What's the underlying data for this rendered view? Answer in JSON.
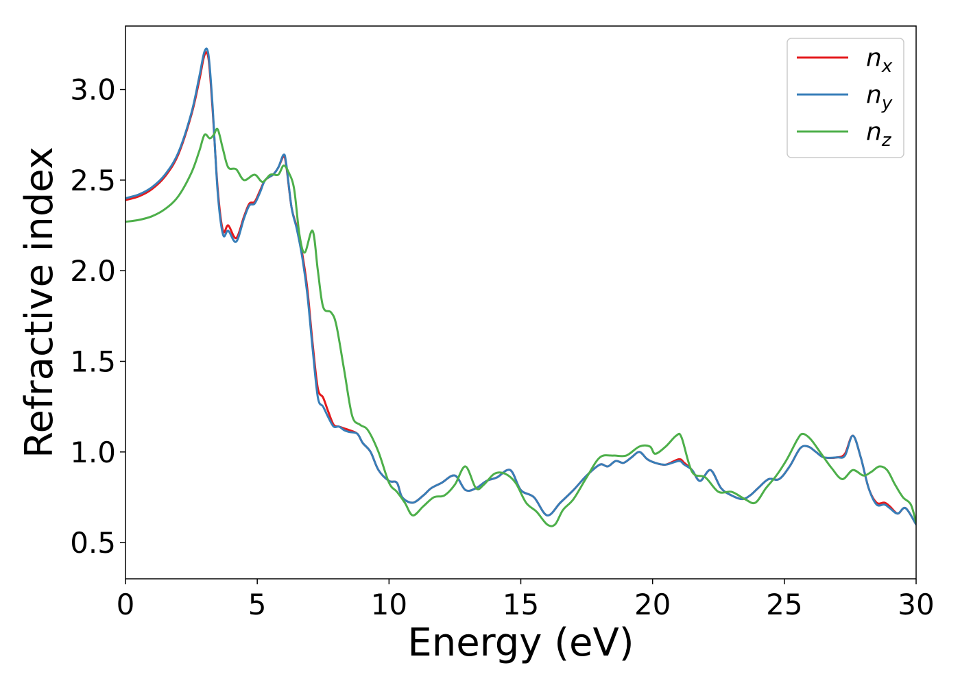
{
  "chart_data": {
    "type": "line",
    "title": "",
    "xlabel": "Energy (eV)",
    "ylabel": "Refractive index",
    "xlim": [
      0,
      30
    ],
    "ylim": [
      0.3,
      3.35
    ],
    "xticks": [
      0,
      5,
      10,
      15,
      20,
      25,
      30
    ],
    "xtick_labels": [
      "0",
      "5",
      "10",
      "15",
      "20",
      "25",
      "30"
    ],
    "yticks": [
      0.5,
      1.0,
      1.5,
      2.0,
      2.5,
      3.0
    ],
    "ytick_labels": [
      "0.5",
      "1.0",
      "1.5",
      "2.0",
      "2.5",
      "3.0"
    ],
    "grid": false,
    "legend_position": "top-right",
    "series": [
      {
        "name": "n_x",
        "label_base": "n",
        "label_sub": "x",
        "color": "#e41a1c",
        "x": [
          0,
          0.5,
          1,
          1.5,
          2,
          2.5,
          2.8,
          3.0,
          3.15,
          3.3,
          3.5,
          3.7,
          3.9,
          4.2,
          4.5,
          4.7,
          4.9,
          5.1,
          5.3,
          5.6,
          5.8,
          6.0,
          6.1,
          6.3,
          6.5,
          6.7,
          6.9,
          7.1,
          7.3,
          7.5,
          7.7,
          7.9,
          8.1,
          8.3,
          8.5,
          8.8,
          9.0,
          9.3,
          9.6,
          10.0,
          10.3,
          10.5,
          10.9,
          11.3,
          11.6,
          12.0,
          12.5,
          12.9,
          13.3,
          13.7,
          14.1,
          14.6,
          15.0,
          15.5,
          16.0,
          16.5,
          17.0,
          17.5,
          18.0,
          18.3,
          18.6,
          18.9,
          19.2,
          19.5,
          19.8,
          20.1,
          20.5,
          21.0,
          21.2,
          21.5,
          21.8,
          22.2,
          22.6,
          23.0,
          23.4,
          23.7,
          24.0,
          24.4,
          24.8,
          25.2,
          25.6,
          25.9,
          26.2,
          26.5,
          27.0,
          27.3,
          27.6,
          27.9,
          28.2,
          28.5,
          28.8,
          29.0,
          29.3,
          29.6,
          30.0
        ],
        "y": [
          2.39,
          2.41,
          2.45,
          2.52,
          2.64,
          2.86,
          3.05,
          3.19,
          3.17,
          2.9,
          2.45,
          2.22,
          2.25,
          2.18,
          2.3,
          2.37,
          2.38,
          2.44,
          2.5,
          2.53,
          2.57,
          2.63,
          2.58,
          2.35,
          2.24,
          2.1,
          1.9,
          1.6,
          1.35,
          1.3,
          1.22,
          1.15,
          1.14,
          1.13,
          1.12,
          1.1,
          1.05,
          1.0,
          0.9,
          0.84,
          0.83,
          0.75,
          0.72,
          0.76,
          0.8,
          0.83,
          0.87,
          0.79,
          0.8,
          0.84,
          0.86,
          0.9,
          0.79,
          0.75,
          0.65,
          0.72,
          0.79,
          0.87,
          0.93,
          0.92,
          0.95,
          0.94,
          0.97,
          1.0,
          0.96,
          0.94,
          0.93,
          0.96,
          0.94,
          0.9,
          0.84,
          0.9,
          0.8,
          0.76,
          0.74,
          0.76,
          0.8,
          0.85,
          0.85,
          0.92,
          1.02,
          1.03,
          1.0,
          0.97,
          0.97,
          0.99,
          1.09,
          0.97,
          0.8,
          0.72,
          0.72,
          0.7,
          0.66,
          0.69,
          0.6
        ]
      },
      {
        "name": "n_y",
        "label_base": "n",
        "label_sub": "y",
        "color": "#377eb8",
        "x": [
          0,
          0.5,
          1,
          1.5,
          2,
          2.5,
          2.8,
          3.0,
          3.15,
          3.3,
          3.5,
          3.7,
          3.9,
          4.2,
          4.5,
          4.7,
          4.9,
          5.1,
          5.3,
          5.6,
          5.8,
          6.0,
          6.1,
          6.3,
          6.5,
          6.7,
          6.9,
          7.1,
          7.3,
          7.5,
          7.7,
          7.9,
          8.1,
          8.3,
          8.5,
          8.8,
          9.0,
          9.3,
          9.6,
          10.0,
          10.3,
          10.5,
          10.9,
          11.3,
          11.6,
          12.0,
          12.5,
          12.9,
          13.3,
          13.7,
          14.1,
          14.6,
          15.0,
          15.5,
          16.0,
          16.5,
          17.0,
          17.5,
          18.0,
          18.3,
          18.6,
          18.9,
          19.2,
          19.5,
          19.8,
          20.1,
          20.5,
          21.0,
          21.2,
          21.5,
          21.8,
          22.2,
          22.6,
          23.0,
          23.4,
          23.7,
          24.0,
          24.4,
          24.8,
          25.2,
          25.6,
          25.9,
          26.2,
          26.5,
          27.0,
          27.3,
          27.6,
          27.9,
          28.2,
          28.5,
          28.8,
          29.0,
          29.3,
          29.6,
          30.0
        ],
        "y": [
          2.4,
          2.42,
          2.46,
          2.53,
          2.65,
          2.87,
          3.07,
          3.21,
          3.19,
          2.92,
          2.43,
          2.2,
          2.22,
          2.16,
          2.29,
          2.36,
          2.37,
          2.43,
          2.5,
          2.53,
          2.57,
          2.64,
          2.59,
          2.35,
          2.23,
          2.08,
          1.87,
          1.57,
          1.3,
          1.25,
          1.19,
          1.14,
          1.14,
          1.12,
          1.11,
          1.1,
          1.05,
          1.0,
          0.9,
          0.84,
          0.83,
          0.75,
          0.72,
          0.76,
          0.8,
          0.83,
          0.87,
          0.79,
          0.8,
          0.84,
          0.86,
          0.9,
          0.79,
          0.75,
          0.65,
          0.72,
          0.79,
          0.87,
          0.93,
          0.92,
          0.95,
          0.94,
          0.97,
          1.0,
          0.96,
          0.94,
          0.93,
          0.95,
          0.93,
          0.9,
          0.84,
          0.9,
          0.8,
          0.76,
          0.74,
          0.76,
          0.8,
          0.85,
          0.85,
          0.92,
          1.02,
          1.03,
          1.0,
          0.97,
          0.97,
          0.98,
          1.09,
          0.97,
          0.8,
          0.71,
          0.71,
          0.69,
          0.66,
          0.69,
          0.6
        ]
      },
      {
        "name": "n_z",
        "label_base": "n",
        "label_sub": "z",
        "color": "#4daf4a",
        "x": [
          0,
          0.5,
          1,
          1.5,
          2,
          2.5,
          2.8,
          3.0,
          3.2,
          3.35,
          3.5,
          3.7,
          3.9,
          4.2,
          4.5,
          4.9,
          5.2,
          5.5,
          5.8,
          6.0,
          6.2,
          6.4,
          6.6,
          6.8,
          7.1,
          7.3,
          7.5,
          7.8,
          8.0,
          8.3,
          8.6,
          8.9,
          9.2,
          9.6,
          10.0,
          10.3,
          10.6,
          10.9,
          11.3,
          11.7,
          12.1,
          12.5,
          12.9,
          13.3,
          13.6,
          14.0,
          14.4,
          14.8,
          15.2,
          15.6,
          16.0,
          16.3,
          16.6,
          17.0,
          17.5,
          18.0,
          18.5,
          19.0,
          19.5,
          19.9,
          20.1,
          20.5,
          20.9,
          21.1,
          21.5,
          22.0,
          22.5,
          23.0,
          23.5,
          23.9,
          24.3,
          24.7,
          25.1,
          25.5,
          25.7,
          26.0,
          26.4,
          26.8,
          27.2,
          27.6,
          28.0,
          28.3,
          28.6,
          28.9,
          29.2,
          29.5,
          29.8,
          30.0
        ],
        "y": [
          2.27,
          2.28,
          2.3,
          2.34,
          2.41,
          2.54,
          2.66,
          2.75,
          2.73,
          2.75,
          2.78,
          2.67,
          2.57,
          2.56,
          2.5,
          2.53,
          2.49,
          2.53,
          2.53,
          2.58,
          2.54,
          2.45,
          2.2,
          2.1,
          2.22,
          2.0,
          1.8,
          1.77,
          1.7,
          1.45,
          1.2,
          1.15,
          1.12,
          1.0,
          0.83,
          0.78,
          0.72,
          0.65,
          0.7,
          0.75,
          0.76,
          0.82,
          0.92,
          0.8,
          0.82,
          0.88,
          0.88,
          0.83,
          0.72,
          0.67,
          0.6,
          0.6,
          0.68,
          0.74,
          0.86,
          0.97,
          0.98,
          0.98,
          1.03,
          1.03,
          0.99,
          1.03,
          1.09,
          1.08,
          0.89,
          0.86,
          0.78,
          0.78,
          0.74,
          0.72,
          0.8,
          0.87,
          0.96,
          1.07,
          1.1,
          1.07,
          0.99,
          0.91,
          0.85,
          0.9,
          0.87,
          0.89,
          0.92,
          0.9,
          0.82,
          0.75,
          0.71,
          0.61
        ]
      }
    ]
  }
}
